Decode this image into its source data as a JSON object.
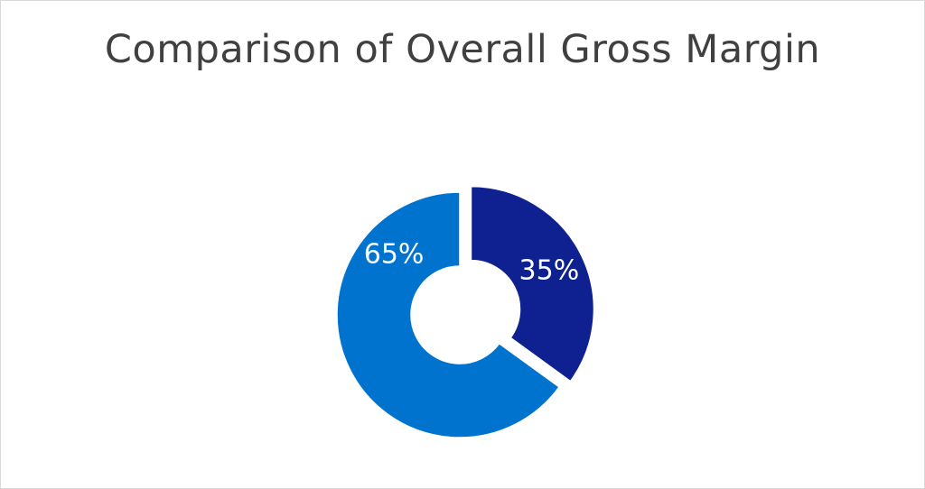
{
  "chart_data": {
    "type": "pie",
    "variant": "doughnut",
    "title": "Comparison of Overall Gross Margin",
    "slices": [
      {
        "label": "35%",
        "value": 35,
        "color": "#0f2190",
        "exploded": true
      },
      {
        "label": "65%",
        "value": 65,
        "color": "#0073cf",
        "exploded": false
      }
    ],
    "start_angle": "12 o'clock",
    "direction": "clockwise",
    "legend": "none"
  }
}
